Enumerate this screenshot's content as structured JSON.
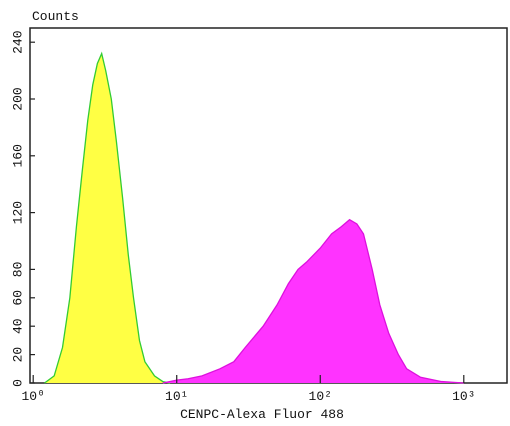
{
  "chart_data": {
    "type": "area",
    "title": "Counts",
    "x_label": "CENPC-Alexa Fluor 488",
    "x_scale": "log",
    "xlim": [
      0.95,
      2000
    ],
    "ylim": [
      0,
      250
    ],
    "xticks": [
      {
        "value": 1,
        "label": "10⁰"
      },
      {
        "value": 10,
        "label": "10¹"
      },
      {
        "value": 100,
        "label": "10²"
      },
      {
        "value": 1000,
        "label": "10³"
      }
    ],
    "yticks": [
      0,
      20,
      40,
      60,
      80,
      120,
      160,
      200,
      240
    ],
    "series": [
      {
        "color": "#ffff44",
        "line_color": "#33cc33",
        "x": [
          1.2,
          1.4,
          1.6,
          1.8,
          2.0,
          2.2,
          2.4,
          2.6,
          2.8,
          3.0,
          3.2,
          3.5,
          3.8,
          4.2,
          4.6,
          5.0,
          5.5,
          6.0,
          7.0,
          8.0,
          9.0
        ],
        "values": [
          0,
          5,
          25,
          60,
          110,
          150,
          185,
          210,
          225,
          232,
          220,
          200,
          170,
          130,
          90,
          60,
          30,
          15,
          5,
          1,
          0
        ]
      },
      {
        "color": "#ff33ff",
        "line_color": "#dd11dd",
        "x": [
          8,
          10,
          12,
          15,
          20,
          25,
          30,
          40,
          50,
          60,
          70,
          80,
          100,
          120,
          140,
          160,
          180,
          200,
          230,
          260,
          300,
          350,
          400,
          500,
          700,
          1000
        ],
        "values": [
          0,
          2,
          3,
          5,
          10,
          15,
          25,
          40,
          55,
          70,
          80,
          85,
          95,
          105,
          110,
          115,
          112,
          105,
          80,
          55,
          35,
          20,
          10,
          4,
          1,
          0
        ]
      }
    ]
  }
}
